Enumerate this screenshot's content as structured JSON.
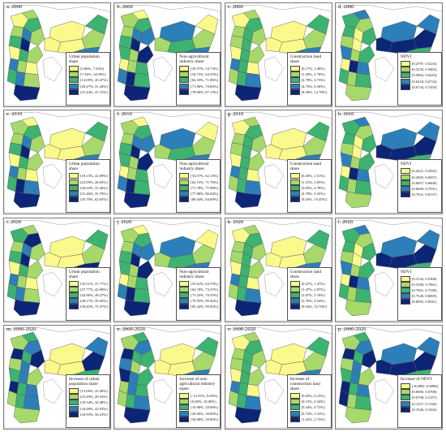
{
  "colors": [
    "#fafa8c",
    "#a6d96a",
    "#3cb371",
    "#2c7fb8",
    "#0c2577"
  ],
  "panels": [
    {
      "id": "a",
      "title": "a. 2000",
      "legend_title": "Urban population share",
      "ranges": [
        "[3.86%, 7.54%)",
        "[7.54%, 14.09%)",
        "[14.09%, 20.47%)",
        "[20.47%, 31.44%)",
        "[31.44%, 47.31%]"
      ]
    },
    {
      "id": "b",
      "title": "b. 2000",
      "legend_title": "Non-agricultural industry share",
      "ranges": [
        "[39.57%, 54.73%)",
        "[54.73%, 64.33%)",
        "[64.33%, 71.86%)",
        "[71.86%, 78.00%)",
        "[78.00%, 87.13%]"
      ]
    },
    {
      "id": "c",
      "title": "c. 2000",
      "legend_title": "Construction land share",
      "ranges": [
        "[0.17%, 1.28%)",
        "[1.28%, 2.78%)",
        "[2.78%, 4.73%)",
        "[4.73%, 8.30%)",
        "[8.30%, 14.78%]"
      ]
    },
    {
      "id": "d",
      "title": "d. 2000",
      "legend_title": "NDVI",
      "ranges": [
        "[0.4797, 0.5235)",
        "[0.5235, 0.5863)",
        "[0.5863, 0.6418)",
        "[0.6418, 0.6734)",
        "[0.6734, 0.7450]"
      ]
    },
    {
      "id": "e",
      "title": "e. 2010",
      "legend_title": "Urban population share",
      "ranges": [
        "[18.15%, 22.09%)",
        "[22.09%, 26.03%)",
        "[26.03%, 31.46%)",
        "[31.46%, 35.79%)",
        "[35.79%, 62.65%]"
      ]
    },
    {
      "id": "f",
      "title": "f. 2010",
      "legend_title": "Non-agricultural industry share",
      "ranges": [
        "[54.57%, 62.15%)",
        "[62.15%, 71.78%)",
        "[71.78%, 77.98%)",
        "[77.98%, 86.04%)",
        "[86.04%, 94.09%]"
      ]
    },
    {
      "id": "g",
      "title": "g. 2010",
      "legend_title": "Construction land share",
      "ranges": [
        "[0.45%, 1.51%)",
        "[1.51%, 3.05%)",
        "[3.05%, 4.78%)",
        "[4.78%, 9.35%)",
        "[9.35%, 15.45%]"
      ]
    },
    {
      "id": "h",
      "title": "h. 2010",
      "legend_title": "NDVI",
      "ranges": [
        "[0.4321, 0.4565)",
        "[0.4565, 0.6057)",
        "[0.6057, 0.6609)",
        "[0.6609, 0.7631)",
        "[0.7631, 0.8137]"
      ]
    },
    {
      "id": "i",
      "title": "i. 2020",
      "legend_title": "Urban population share",
      "ranges": [
        "[35.51%, 37.77%)",
        "[37.77%, 42.96%)",
        "[42.96%, 49.27%)",
        "[49.27%, 59.45%)",
        "[59.45%, 75.37%]"
      ]
    },
    {
      "id": "j",
      "title": "j. 2020",
      "legend_title": "Non-agricultural industry share",
      "ranges": [
        "[55.61%, 64.70%)",
        "[64.70%, 73.25%)",
        "[73.25%, 79.55%)",
        "[79.55%, 85.42%)",
        "[85.42%, 95.85%]"
      ]
    },
    {
      "id": "k",
      "title": "k. 2020",
      "legend_title": "Construction land share",
      "ranges": [
        "[0.47%, 1.47%)",
        "[1.47%, 2.87%)",
        "[2.87%, 5.76%)",
        "[5.76%, 9.54%)",
        "[9.54%, 15.76%]"
      ]
    },
    {
      "id": "l",
      "title": "l. 2020",
      "legend_title": "NDVI",
      "ranges": [
        "[0.5132, 0.5300)",
        "[0.5300, 0.7061)",
        "[0.7061, 0.7549)",
        "[0.7549, 0.8095)",
        "[0.8095, 0.8541]"
      ]
    },
    {
      "id": "m",
      "title": "m. 2000-2020",
      "legend_title": "Increase of urban population share",
      "ranges": [
        "[15.00%, 23.49%)",
        "[23.49%, 29.54%)",
        "[29.54%, 34.48%)",
        "[34.48%, 43.93%)",
        "[43.93%, 56.23%]"
      ]
    },
    {
      "id": "n",
      "title": "n. 2000-2020",
      "legend_title": "Increase of non-agricultural industry share",
      "ranges": [
        "[-12.55%, 0.00%)",
        "[0.00%, 10.00%)",
        "[10.00%, 20.00%)",
        "[20.00%, 30.00%)",
        "[30.00%, 30.06%]"
      ]
    },
    {
      "id": "o",
      "title": "o. 2000-2020",
      "legend_title": "Increase of construction land share",
      "ranges": [
        "[0.03%, 0.15%)",
        "[0.15%, 0.34%)",
        "[0.34%, 0.72%)",
        "[0.72%, 1.41%)",
        "[1.41%, 2.73%]"
      ]
    },
    {
      "id": "p",
      "title": "p. 2000-2020",
      "legend_title": "Increase of NDVI",
      "ranges": [
        "[-0.0082, 0.0000)",
        "[0.0000, 0.0708)",
        "[0.0708, 0.1257)",
        "[0.1257, 0.1526)",
        "[0.1526, 0.1832]"
      ]
    }
  ],
  "region_classes": [
    [
      0,
      1,
      2,
      1,
      3,
      2,
      4,
      1,
      0,
      2,
      1,
      3,
      1,
      0,
      2,
      3,
      1,
      0,
      0,
      0,
      1,
      2,
      3,
      4
    ],
    [
      1,
      0,
      2,
      1,
      3,
      2,
      4,
      3,
      2,
      1,
      4,
      0,
      1,
      2,
      3,
      4,
      2,
      3,
      1,
      2,
      1,
      0,
      3,
      4
    ],
    [
      0,
      1,
      2,
      1,
      2,
      1,
      2,
      1,
      0,
      2,
      1,
      3,
      2,
      0,
      1,
      2,
      3,
      0,
      0,
      0,
      1,
      2,
      3,
      4
    ],
    [
      2,
      3,
      1,
      2,
      0,
      1,
      0,
      2,
      3,
      1,
      2,
      0,
      4,
      3,
      2,
      1,
      2,
      3,
      4,
      4,
      4,
      3,
      2,
      1
    ],
    [
      1,
      0,
      2,
      1,
      3,
      2,
      4,
      1,
      0,
      2,
      1,
      3,
      1,
      0,
      2,
      4,
      3,
      0,
      0,
      0,
      1,
      2,
      3,
      4
    ],
    [
      1,
      0,
      2,
      1,
      3,
      2,
      4,
      3,
      2,
      1,
      4,
      0,
      1,
      2,
      3,
      4,
      2,
      3,
      1,
      2,
      1,
      0,
      3,
      4
    ],
    [
      0,
      1,
      2,
      1,
      2,
      1,
      2,
      1,
      0,
      2,
      1,
      3,
      2,
      0,
      1,
      2,
      3,
      0,
      0,
      0,
      1,
      2,
      3,
      4
    ],
    [
      2,
      3,
      1,
      2,
      0,
      1,
      0,
      2,
      3,
      1,
      2,
      0,
      4,
      3,
      2,
      1,
      2,
      3,
      4,
      4,
      4,
      3,
      2,
      1
    ],
    [
      2,
      1,
      4,
      1,
      3,
      2,
      4,
      1,
      0,
      2,
      1,
      3,
      1,
      0,
      2,
      3,
      1,
      0,
      0,
      0,
      1,
      2,
      4,
      4
    ],
    [
      1,
      0,
      2,
      1,
      3,
      2,
      4,
      3,
      2,
      1,
      4,
      0,
      1,
      2,
      3,
      4,
      2,
      3,
      1,
      2,
      1,
      0,
      3,
      4
    ],
    [
      0,
      1,
      2,
      1,
      2,
      1,
      2,
      1,
      0,
      2,
      1,
      3,
      2,
      0,
      1,
      2,
      3,
      0,
      0,
      0,
      1,
      2,
      3,
      4
    ],
    [
      2,
      3,
      1,
      2,
      0,
      1,
      0,
      2,
      3,
      1,
      2,
      0,
      4,
      3,
      2,
      1,
      2,
      3,
      4,
      4,
      4,
      3,
      2,
      1
    ],
    [
      1,
      2,
      3,
      4,
      2,
      1,
      3,
      4,
      2,
      3,
      1,
      4,
      2,
      3,
      1,
      2,
      3,
      0,
      0,
      0,
      4,
      3,
      2,
      1
    ],
    [
      1,
      2,
      3,
      4,
      2,
      3,
      1,
      2,
      4,
      3,
      2,
      1,
      3,
      2,
      1,
      2,
      3,
      0,
      0,
      0,
      1,
      2,
      3,
      4
    ],
    [
      0,
      1,
      2,
      1,
      2,
      1,
      2,
      1,
      0,
      2,
      1,
      3,
      2,
      0,
      1,
      2,
      3,
      0,
      0,
      0,
      1,
      2,
      3,
      4
    ],
    [
      1,
      2,
      3,
      4,
      2,
      1,
      3,
      4,
      2,
      3,
      1,
      4,
      2,
      3,
      4,
      1,
      2,
      3,
      4,
      4,
      4,
      3,
      2,
      1
    ]
  ]
}
